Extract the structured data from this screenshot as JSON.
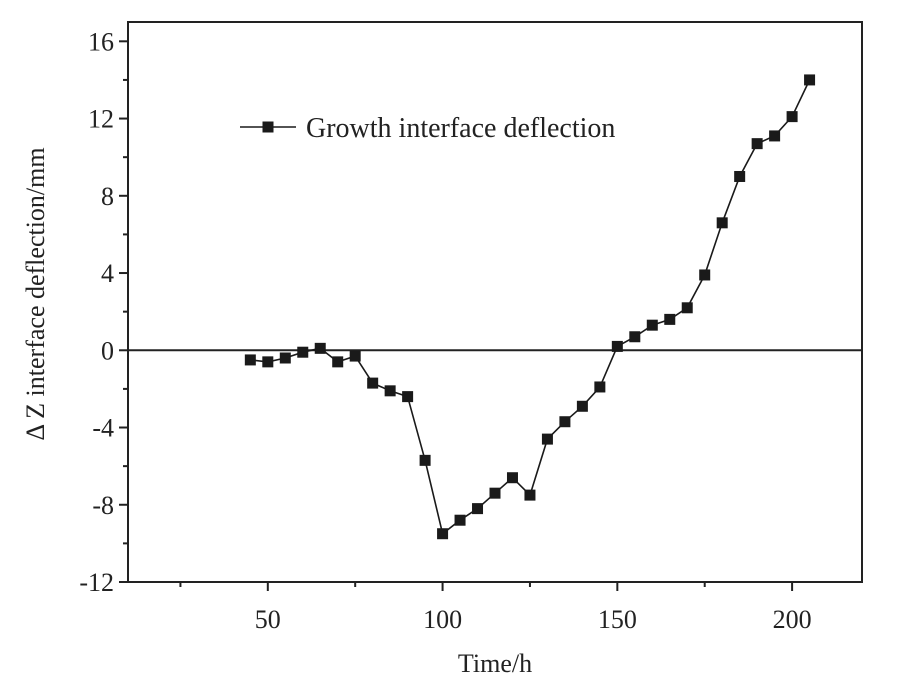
{
  "chart_data": {
    "type": "line",
    "title": "",
    "xlabel": "Time/h",
    "ylabel": "Δ Z interface deflection/mm",
    "xlim": [
      10,
      220
    ],
    "ylim": [
      -12,
      17
    ],
    "x_ticks": [
      50,
      100,
      150,
      200
    ],
    "y_ticks": [
      -12,
      -8,
      -4,
      0,
      4,
      8,
      12,
      16
    ],
    "x_tick_labels": [
      "50",
      "100",
      "150",
      "200"
    ],
    "y_tick_labels": [
      "-12",
      "-8",
      "-4",
      "0",
      "4",
      "8",
      "12",
      "16"
    ],
    "reference_line_y": 0,
    "grid": false,
    "legend": {
      "position": "top-left",
      "entries": [
        "Growth interface deflection"
      ]
    },
    "series": [
      {
        "name": "Growth interface deflection",
        "marker": "square",
        "color": "#1a1a1a",
        "x": [
          45,
          50,
          55,
          60,
          65,
          70,
          75,
          80,
          85,
          90,
          95,
          100,
          105,
          110,
          115,
          120,
          125,
          130,
          135,
          140,
          145,
          150,
          155,
          160,
          165,
          170,
          175,
          180,
          185,
          190,
          195,
          200,
          205
        ],
        "y": [
          -0.5,
          -0.6,
          -0.4,
          -0.1,
          0.1,
          -0.6,
          -0.3,
          -1.7,
          -2.1,
          -2.4,
          -5.7,
          -9.5,
          -8.8,
          -8.2,
          -7.4,
          -6.6,
          -7.5,
          -4.6,
          -3.7,
          -2.9,
          -1.9,
          0.2,
          0.7,
          1.3,
          1.6,
          2.2,
          3.9,
          6.6,
          9.0,
          10.7,
          11.1,
          12.1,
          14.0
        ]
      }
    ]
  }
}
